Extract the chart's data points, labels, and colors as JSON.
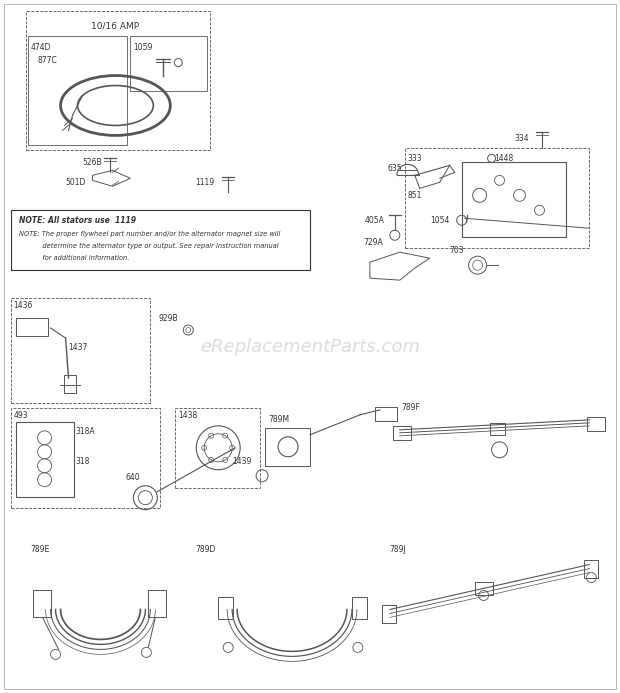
{
  "bg_color": "#ffffff",
  "watermark": "eReplacementParts.com",
  "fig_w": 6.2,
  "fig_h": 6.93,
  "dpi": 100,
  "text_color": "#333333",
  "line_color": "#555555",
  "note_lines": [
    "NOTE: All stators use  1119",
    "NOTE: The proper flywheel part number and/or the alternator magnet size will",
    "           determine the alternator type or output. See repair instruction manual",
    "           for additional information."
  ]
}
